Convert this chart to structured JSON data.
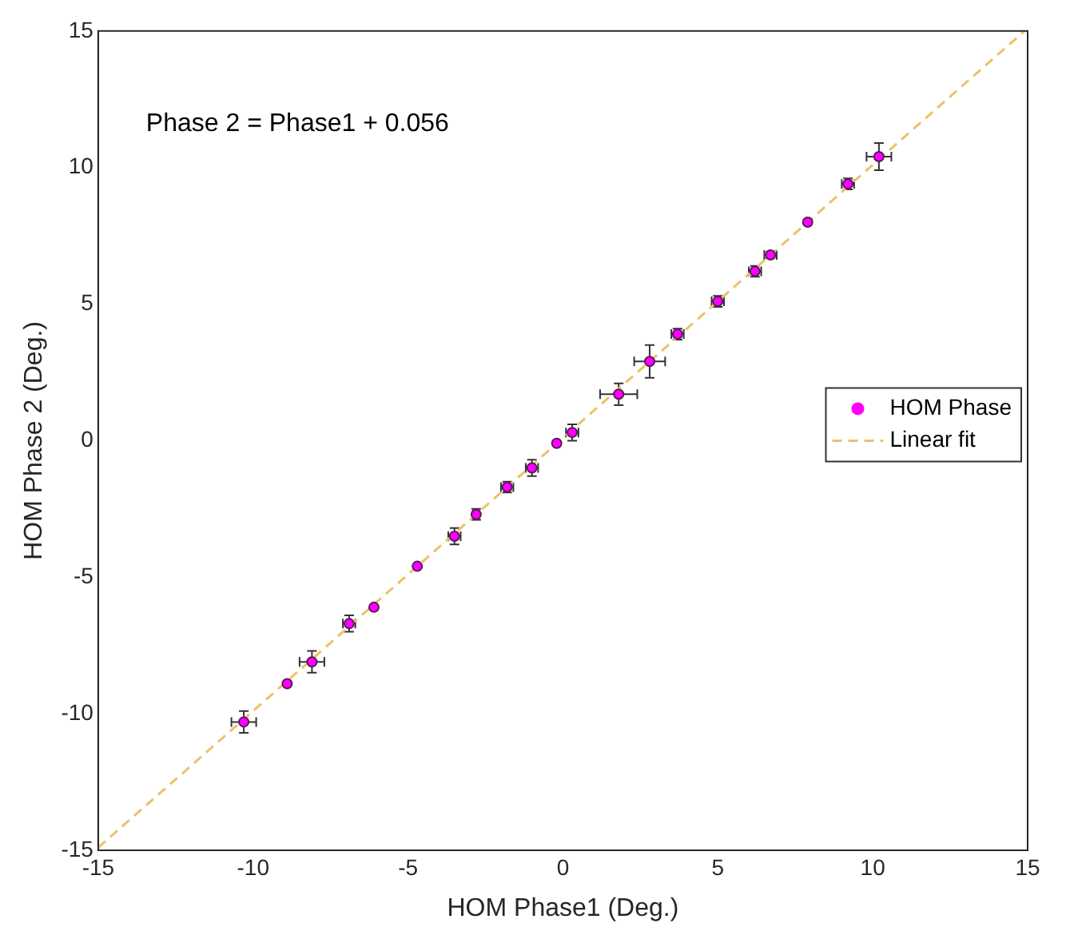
{
  "chart_data": {
    "type": "scatter",
    "xlabel": "HOM Phase1 (Deg.)",
    "ylabel": "HOM Phase 2 (Deg.)",
    "xlim": [
      -15,
      15
    ],
    "ylim": [
      -15,
      15
    ],
    "xticks": [
      -15,
      -10,
      -5,
      0,
      5,
      10,
      15
    ],
    "yticks": [
      -15,
      -10,
      -5,
      0,
      5,
      10,
      15
    ],
    "grid": false,
    "legend": "right",
    "marker": "circle",
    "annotations": [
      "Phase 2 = Phase1 + 0.056"
    ],
    "series": [
      {
        "name": "HOM Phase",
        "color": "#ff00ff",
        "x": [
          -10.3,
          -8.9,
          -8.1,
          -6.9,
          -6.1,
          -4.7,
          -3.5,
          -2.8,
          -1.8,
          -1.0,
          -0.2,
          0.3,
          1.8,
          2.8,
          3.7,
          5.0,
          6.2,
          6.7,
          7.9,
          9.2,
          10.2
        ],
        "values": [
          -10.3,
          -8.9,
          -8.1,
          -6.7,
          -6.1,
          -4.6,
          -3.5,
          -2.7,
          -1.7,
          -1.0,
          -0.1,
          0.3,
          1.7,
          2.9,
          3.9,
          5.1,
          6.2,
          6.8,
          8.0,
          9.4,
          10.4
        ],
        "errors": [
          0.4,
          null,
          0.4,
          0.3,
          null,
          null,
          0.3,
          0.2,
          0.2,
          0.3,
          null,
          0.3,
          0.4,
          0.6,
          0.2,
          0.2,
          0.2,
          0.1,
          null,
          0.2,
          0.5
        ],
        "xerrors": [
          0.4,
          null,
          0.4,
          0.2,
          null,
          null,
          0.2,
          0.1,
          0.2,
          0.2,
          null,
          0.2,
          0.6,
          0.5,
          0.2,
          0.2,
          0.2,
          0.2,
          null,
          0.2,
          0.4
        ]
      },
      {
        "name": "Linear fit",
        "type": "line",
        "color": "#edc06a",
        "line_style": "dashed",
        "marker": "none",
        "x": [
          -15,
          14.9
        ],
        "values": [
          -14.9,
          15
        ]
      }
    ]
  }
}
